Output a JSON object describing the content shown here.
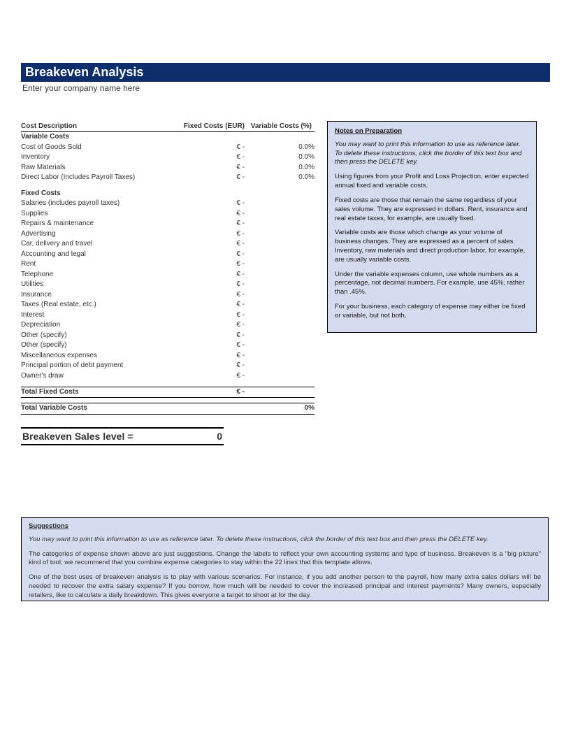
{
  "header": {
    "title": "Breakeven Analysis",
    "subtitle": "Enter your company name here"
  },
  "columns": {
    "desc": "Cost Description",
    "fixed": "Fixed Costs (EUR)",
    "variable": "Variable Costs (%)"
  },
  "sections": {
    "variable_header": "Variable Costs",
    "fixed_header": "Fixed Costs"
  },
  "variable_rows": [
    {
      "label": "Cost of Goods Sold",
      "fixed": "€ -",
      "var": "0.0%"
    },
    {
      "label": "Inventory",
      "fixed": "€ -",
      "var": "0.0%"
    },
    {
      "label": "Raw Materials",
      "fixed": "€ -",
      "var": "0.0%"
    },
    {
      "label": "Direct Labor (Includes Payroll Taxes)",
      "fixed": "€ -",
      "var": "0.0%"
    }
  ],
  "fixed_rows": [
    {
      "label": "Salaries (includes payroll taxes)",
      "fixed": "€ -"
    },
    {
      "label": "Supplies",
      "fixed": "€ -"
    },
    {
      "label": "Repairs & maintenance",
      "fixed": "€ -"
    },
    {
      "label": "Advertising",
      "fixed": "€ -"
    },
    {
      "label": "Car, delivery and travel",
      "fixed": "€ -"
    },
    {
      "label": "Accounting and legal",
      "fixed": "€ -"
    },
    {
      "label": "Rent",
      "fixed": "€ -"
    },
    {
      "label": "Telephone",
      "fixed": "€ -"
    },
    {
      "label": "Utilities",
      "fixed": "€ -"
    },
    {
      "label": "Insurance",
      "fixed": "€ -"
    },
    {
      "label": "Taxes (Real estate, etc.)",
      "fixed": "€ -"
    },
    {
      "label": "Interest",
      "fixed": "€ -"
    },
    {
      "label": "Depreciation",
      "fixed": "€ -"
    },
    {
      "label": "Other (specify)",
      "fixed": "€ -"
    },
    {
      "label": "Other (specify)",
      "fixed": "€ -"
    },
    {
      "label": "Miscellaneous expenses",
      "fixed": "€ -"
    },
    {
      "label": "Principal portion of debt payment",
      "fixed": "€ -"
    },
    {
      "label": "Owner's draw",
      "fixed": "€ -"
    }
  ],
  "totals": {
    "fixed_label": "Total Fixed Costs",
    "fixed_value": "€ -",
    "variable_label": "Total Variable Costs",
    "variable_value": "0%"
  },
  "breakeven": {
    "label": "Breakeven Sales level  =",
    "value": "0"
  },
  "notes": {
    "title": "Notes on Preparation",
    "p1": "You may want to print this information to use as reference later. To delete these instructions, click the border of this text box and then press the DELETE key.",
    "p2": "Using figures from your Profit and Loss Projection, enter expected annual fixed and variable costs.",
    "p3": "Fixed costs are those that remain the same regardless of your sales volume. They are expressed in dollars. Rent, insurance and real estate taxes, for example, are usually fixed.",
    "p4": "Variable costs are those which change as your volume of business changes. They are expressed as a percent of sales. Inventory, raw materials and direct production labor, for example, are usually variable costs.",
    "p5": "Under the variable expenses column, use whole numbers as a percentage, not decimal numbers. For example, use 45%, rather than .45%.",
    "p6": "For your business, each category of expense may either be fixed or variable, but not both."
  },
  "suggestions": {
    "title": "Suggestions",
    "p1": "You may want to print this information to use as reference later. To delete these instructions, click the border of this text box and then press the DELETE key.",
    "p2": "The categories of expense shown above are just suggestions. Change the labels to reflect your own accounting systems and type of business. Breakeven is a \"big picture\" kind of tool; we recommend that you combine expense categories to stay within the 22 lines that this template allows.",
    "p3": "One of the best uses of breakeven analysis is to play with various scenarios. For instance, if you add another person to the payroll, how many extra sales dollars will be needed to recover the extra salary expense? If you borrow, how much will be needed to cover the increased principal and interest payments? Many owners, especially retailers, like to calculate a daily breakdown. This gives everyone a target to shoot at for the day."
  },
  "colors": {
    "title_bg": "#0d2e6b",
    "box_bg": "#d5dcf0",
    "text": "#333333"
  }
}
